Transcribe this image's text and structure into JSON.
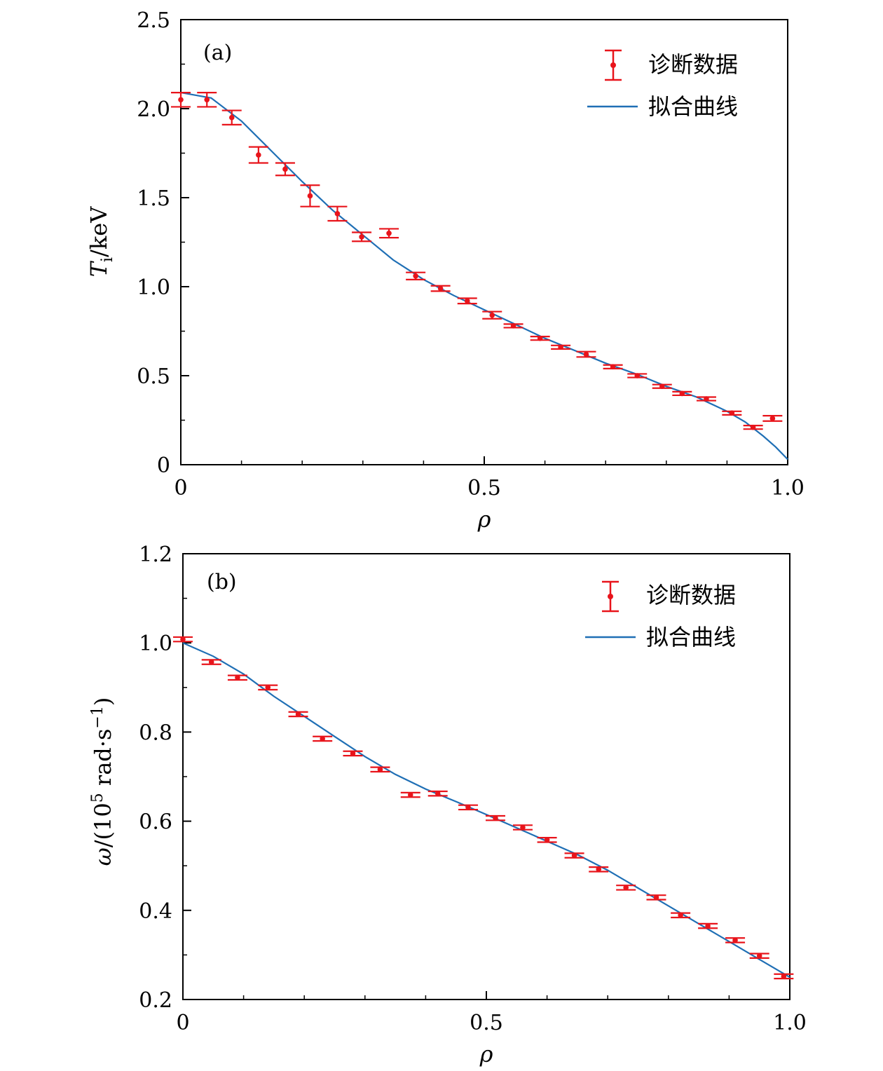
{
  "chart_data": [
    {
      "type": "scatter",
      "panel_label": "(a)",
      "xlabel": "ρ",
      "ylabel": "Ti/keV",
      "ylabel_main": "T",
      "ylabel_sub": "i",
      "ylabel_rest": "/keV",
      "xlim": [
        0,
        1.0
      ],
      "ylim": [
        0,
        2.5
      ],
      "xticks": [
        0,
        0.5,
        1.0
      ],
      "xtick_labels": [
        "0",
        "0.5",
        "1.0"
      ],
      "yticks": [
        0,
        0.5,
        1.0,
        1.5,
        2.0,
        2.5
      ],
      "ytick_labels": [
        "0",
        "0.5",
        "1.0",
        "1.5",
        "2.0",
        "2.5"
      ],
      "legend_position": "top-right",
      "grid": false,
      "series": [
        {
          "name": "诊断数据",
          "kind": "errorbar",
          "color": "#e8141b",
          "x": [
            0.0,
            0.043,
            0.084,
            0.128,
            0.172,
            0.213,
            0.258,
            0.298,
            0.343,
            0.387,
            0.428,
            0.472,
            0.513,
            0.548,
            0.592,
            0.626,
            0.668,
            0.712,
            0.752,
            0.793,
            0.826,
            0.866,
            0.908,
            0.943,
            0.975
          ],
          "y": [
            2.05,
            2.05,
            1.95,
            1.74,
            1.66,
            1.51,
            1.41,
            1.28,
            1.3,
            1.06,
            0.99,
            0.92,
            0.84,
            0.78,
            0.71,
            0.66,
            0.62,
            0.55,
            0.5,
            0.44,
            0.4,
            0.37,
            0.29,
            0.21,
            0.26
          ],
          "yerr": [
            0.04,
            0.04,
            0.04,
            0.045,
            0.035,
            0.06,
            0.04,
            0.025,
            0.025,
            0.02,
            0.015,
            0.015,
            0.02,
            0.01,
            0.01,
            0.01,
            0.015,
            0.01,
            0.01,
            0.01,
            0.01,
            0.01,
            0.01,
            0.01,
            0.015
          ]
        },
        {
          "name": "拟合曲线",
          "kind": "line",
          "color": "#1f6fb5",
          "x": [
            0.0,
            0.05,
            0.1,
            0.15,
            0.2,
            0.25,
            0.3,
            0.35,
            0.4,
            0.45,
            0.5,
            0.55,
            0.6,
            0.65,
            0.7,
            0.75,
            0.8,
            0.85,
            0.9,
            0.93,
            0.96,
            0.98,
            1.0
          ],
          "y": [
            2.09,
            2.06,
            1.93,
            1.76,
            1.59,
            1.43,
            1.29,
            1.15,
            1.04,
            0.95,
            0.87,
            0.79,
            0.71,
            0.64,
            0.57,
            0.51,
            0.44,
            0.38,
            0.3,
            0.24,
            0.16,
            0.1,
            0.03
          ]
        }
      ]
    },
    {
      "type": "scatter",
      "panel_label": "(b)",
      "xlabel": "ρ",
      "ylabel": "ω/(10^5 rad·s^−1)",
      "ylabel_main": "ω",
      "ylabel_mid": "/(10",
      "ylabel_sup1": "5",
      "ylabel_mid2": " rad·s",
      "ylabel_sup2": "−1",
      "ylabel_end": ")",
      "xlim": [
        0,
        1.0
      ],
      "ylim": [
        0.2,
        1.2
      ],
      "xticks": [
        0,
        0.5,
        1.0
      ],
      "xtick_labels": [
        "0",
        "0.5",
        "1.0"
      ],
      "yticks": [
        0.2,
        0.4,
        0.6,
        0.8,
        1.0,
        1.2
      ],
      "ytick_labels": [
        "0.2",
        "0.4",
        "0.6",
        "0.8",
        "1.0",
        "1.2"
      ],
      "legend_position": "top-right",
      "grid": false,
      "series": [
        {
          "name": "诊断数据",
          "kind": "errorbar",
          "color": "#e8141b",
          "x": [
            0.0,
            0.047,
            0.09,
            0.14,
            0.19,
            0.23,
            0.28,
            0.325,
            0.375,
            0.42,
            0.47,
            0.515,
            0.56,
            0.6,
            0.645,
            0.685,
            0.73,
            0.78,
            0.82,
            0.865,
            0.91,
            0.95,
            0.99
          ],
          "y": [
            1.008,
            0.957,
            0.922,
            0.9,
            0.84,
            0.785,
            0.752,
            0.716,
            0.659,
            0.662,
            0.631,
            0.607,
            0.586,
            0.558,
            0.523,
            0.492,
            0.451,
            0.429,
            0.389,
            0.365,
            0.333,
            0.298,
            0.252
          ]
        },
        {
          "name": "拟合曲线",
          "kind": "line",
          "color": "#1f6fb5",
          "x": [
            0.0,
            0.05,
            0.1,
            0.15,
            0.2,
            0.25,
            0.3,
            0.35,
            0.4,
            0.45,
            0.5,
            0.55,
            0.6,
            0.65,
            0.7,
            0.75,
            0.8,
            0.85,
            0.9,
            0.95,
            1.0
          ],
          "y": [
            1.0,
            0.97,
            0.93,
            0.88,
            0.835,
            0.79,
            0.745,
            0.705,
            0.672,
            0.644,
            0.615,
            0.585,
            0.555,
            0.525,
            0.49,
            0.45,
            0.41,
            0.37,
            0.33,
            0.29,
            0.25
          ]
        }
      ]
    }
  ]
}
